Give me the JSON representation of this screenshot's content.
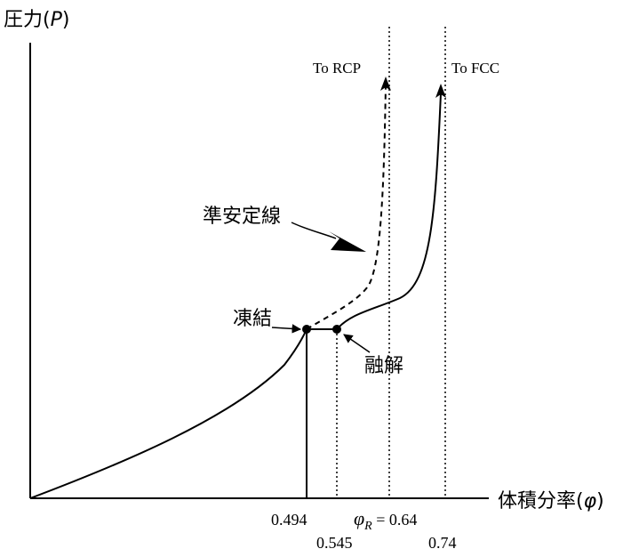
{
  "axes": {
    "y_label_prefix": "圧力(",
    "y_label_symbol": "P",
    "y_label_suffix": ")",
    "x_label_prefix": "体積分率(",
    "x_label_symbol": "φ",
    "x_label_suffix": ")"
  },
  "annotations": {
    "to_rcp": "To RCP",
    "to_fcc": "To FCC",
    "metastable": "準安定線",
    "freezing": "凍結",
    "melting": "融解"
  },
  "ticks": {
    "freezing": "0.494",
    "melting": "0.545",
    "rcp_symbol": "φ",
    "rcp_subscript": "R",
    "rcp_value": " = 0.64",
    "fcc": "0.74"
  },
  "chart_data": {
    "type": "line",
    "xlabel": "体積分率(φ)",
    "ylabel": "圧力(P)",
    "marked_x": [
      0.494,
      0.545,
      0.64,
      0.74
    ],
    "series": [
      {
        "points": [
          [
            0.0,
            0.0
          ],
          [
            0.1,
            0.05
          ],
          [
            0.2,
            0.1
          ],
          [
            0.3,
            0.17
          ],
          [
            0.4,
            0.27
          ],
          [
            0.45,
            0.35
          ],
          [
            0.494,
            0.46
          ]
        ]
      },
      {
        "style": "dashed",
        "points": [
          [
            0.494,
            0.46
          ],
          [
            0.53,
            0.5
          ],
          [
            0.57,
            0.56
          ],
          [
            0.6,
            0.67
          ],
          [
            0.62,
            0.78
          ],
          [
            0.635,
            0.9
          ]
        ]
      },
      {
        "points": [
          [
            0.494,
            0.46
          ],
          [
            0.545,
            0.46
          ]
        ]
      },
      {
        "points": [
          [
            0.545,
            0.46
          ],
          [
            0.6,
            0.52
          ],
          [
            0.66,
            0.6
          ],
          [
            0.7,
            0.72
          ],
          [
            0.72,
            0.83
          ],
          [
            0.73,
            0.9
          ]
        ]
      }
    ],
    "points_marked": [
      [
        0.494,
        0.46
      ],
      [
        0.545,
        0.46
      ]
    ]
  }
}
